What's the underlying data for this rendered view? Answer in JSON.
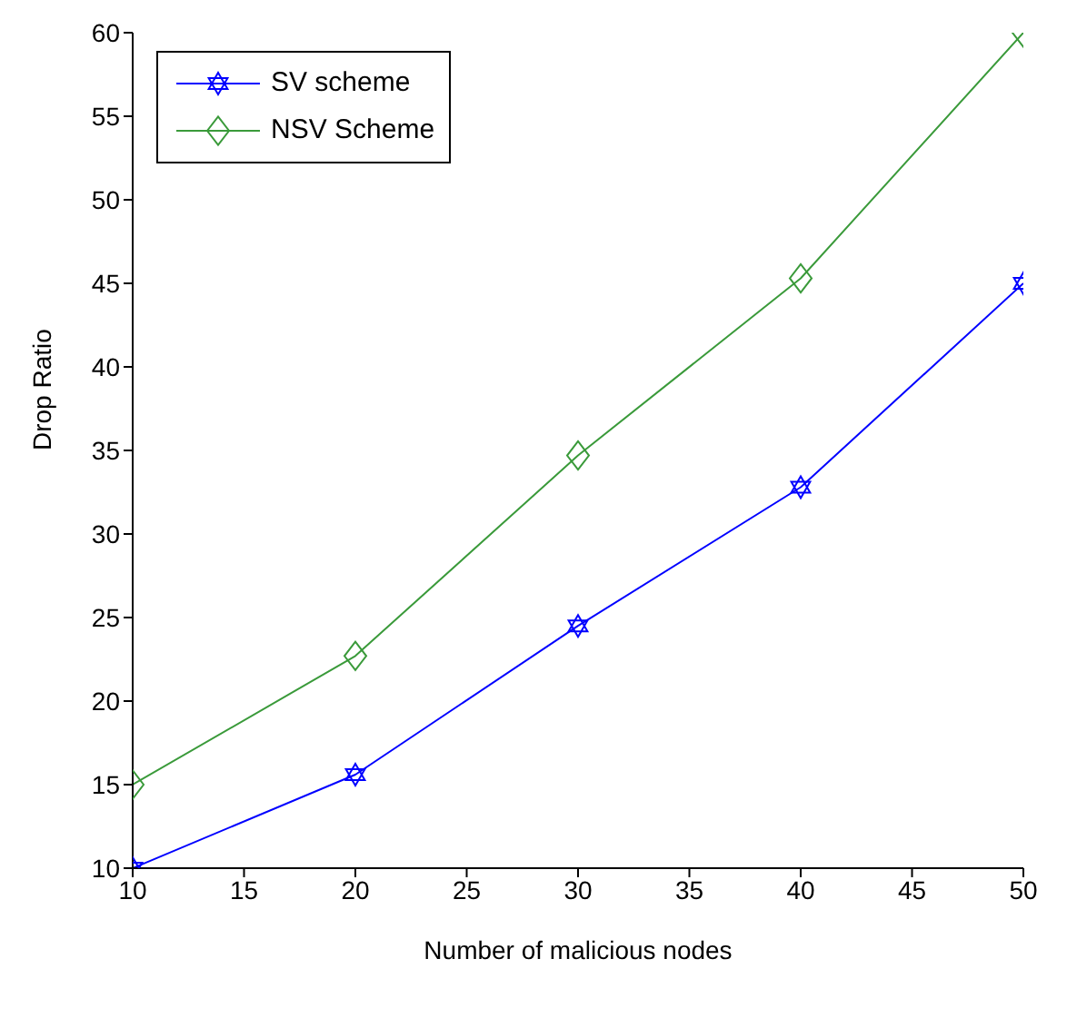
{
  "chart_data": {
    "type": "line",
    "xlabel": "Number of malicious nodes",
    "ylabel": "Drop Ratio",
    "x": [
      10,
      20,
      30,
      40,
      50
    ],
    "series": [
      {
        "name": "SV scheme",
        "color": "#0000ff",
        "marker": "star",
        "values": [
          10,
          15.6,
          24.5,
          32.8,
          45
        ]
      },
      {
        "name": "NSV Scheme",
        "color": "#3a9a3a",
        "marker": "diamond",
        "values": [
          15,
          22.7,
          34.7,
          45.3,
          60
        ]
      }
    ],
    "xlim": [
      10,
      50
    ],
    "xticks": [
      10,
      15,
      20,
      25,
      30,
      35,
      40,
      45,
      50
    ],
    "ylim": [
      10,
      60
    ],
    "yticks": [
      10,
      15,
      20,
      25,
      30,
      35,
      40,
      45,
      50,
      55,
      60
    ],
    "grid": false,
    "legend": "top left",
    "line_style": "solid"
  }
}
